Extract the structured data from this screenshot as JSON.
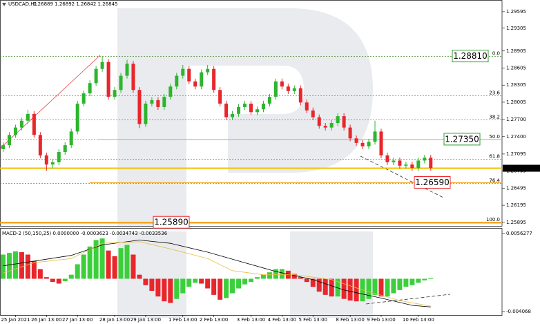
{
  "chart_data": [
    {
      "type": "candlestick",
      "title": "USDCAD,H1",
      "subtitle": "1.26889 1.26892 1.26842 1.26845",
      "up_color": "#2db52d",
      "down_color": "#e8262b",
      "open": [
        1.2718,
        1.2725,
        1.2743,
        1.2756,
        1.2768,
        1.278,
        1.2743,
        1.2707,
        1.2691,
        1.2695,
        1.2713,
        1.2725,
        1.2749,
        1.2798,
        1.2816,
        1.2834,
        1.2859,
        1.2871,
        1.281,
        1.2822,
        1.2847,
        1.2868,
        1.2822,
        1.2762,
        1.2798,
        1.2804,
        1.2792,
        1.281,
        1.2828,
        1.2847,
        1.2859,
        1.2837,
        1.2828,
        1.2853,
        1.2859,
        1.2822,
        1.2798,
        1.2774,
        1.278,
        1.2792,
        1.2798,
        1.2783,
        1.2788,
        1.2798,
        1.281,
        1.2837,
        1.2828,
        1.282,
        1.2825,
        1.28,
        1.2786,
        1.2774,
        1.2759,
        1.2756,
        1.2764,
        1.2776,
        1.2756,
        1.2737,
        1.2729,
        1.2723,
        1.2731,
        1.2749,
        1.2707,
        1.2695,
        1.2698,
        1.2689,
        1.2691,
        1.2685,
        1.2698,
        1.2703
      ],
      "high": [
        1.273,
        1.2748,
        1.2761,
        1.2773,
        1.2787,
        1.2785,
        1.2748,
        1.2712,
        1.27,
        1.2718,
        1.273,
        1.2754,
        1.2803,
        1.2821,
        1.2839,
        1.2864,
        1.2881,
        1.2876,
        1.2827,
        1.2852,
        1.2875,
        1.2873,
        1.2827,
        1.2803,
        1.2809,
        1.2809,
        1.2815,
        1.2833,
        1.2852,
        1.2866,
        1.2864,
        1.2842,
        1.2858,
        1.2866,
        1.2864,
        1.2827,
        1.2803,
        1.2785,
        1.2797,
        1.2803,
        1.2803,
        1.2793,
        1.2803,
        1.2815,
        1.2842,
        1.2842,
        1.2833,
        1.283,
        1.283,
        1.2805,
        1.2791,
        1.2779,
        1.2764,
        1.2769,
        1.2781,
        1.2781,
        1.2761,
        1.2742,
        1.2734,
        1.2736,
        1.2768,
        1.2754,
        1.2712,
        1.2703,
        1.2703,
        1.2696,
        1.2696,
        1.2703,
        1.2708,
        1.2708
      ],
      "low": [
        1.2713,
        1.272,
        1.2738,
        1.2751,
        1.2763,
        1.2738,
        1.2702,
        1.268,
        1.2684,
        1.269,
        1.2708,
        1.272,
        1.2744,
        1.2793,
        1.2811,
        1.2829,
        1.2854,
        1.2805,
        1.2805,
        1.2817,
        1.2842,
        1.2817,
        1.2755,
        1.2757,
        1.2793,
        1.2787,
        1.2787,
        1.2805,
        1.2823,
        1.2842,
        1.2832,
        1.2823,
        1.2823,
        1.2848,
        1.2817,
        1.2793,
        1.2769,
        1.2769,
        1.2775,
        1.2787,
        1.2778,
        1.2778,
        1.2783,
        1.2793,
        1.2805,
        1.2823,
        1.2815,
        1.2815,
        1.2795,
        1.2781,
        1.2769,
        1.2754,
        1.2751,
        1.2751,
        1.2759,
        1.2751,
        1.2732,
        1.2724,
        1.2718,
        1.2718,
        1.2726,
        1.2702,
        1.269,
        1.269,
        1.2684,
        1.2684,
        1.268,
        1.268,
        1.2693,
        1.268
      ],
      "close": [
        1.2725,
        1.2743,
        1.2756,
        1.2768,
        1.278,
        1.2743,
        1.2707,
        1.2691,
        1.2695,
        1.2713,
        1.2725,
        1.2749,
        1.2798,
        1.2816,
        1.2834,
        1.2859,
        1.2871,
        1.281,
        1.2822,
        1.2847,
        1.2868,
        1.2822,
        1.2762,
        1.2798,
        1.2804,
        1.2792,
        1.281,
        1.2828,
        1.2847,
        1.2859,
        1.2837,
        1.2828,
        1.2853,
        1.2859,
        1.2822,
        1.2798,
        1.2774,
        1.278,
        1.2792,
        1.2798,
        1.2783,
        1.2788,
        1.2798,
        1.281,
        1.2837,
        1.2828,
        1.282,
        1.2825,
        1.28,
        1.2786,
        1.2774,
        1.2759,
        1.2756,
        1.2764,
        1.2776,
        1.2756,
        1.2737,
        1.2729,
        1.2723,
        1.2731,
        1.2749,
        1.2707,
        1.2695,
        1.2698,
        1.2689,
        1.2691,
        1.2685,
        1.2698,
        1.2703,
        1.2685
      ],
      "xlim": [
        -0.5,
        80.5
      ],
      "xticks": [
        {
          "value": 2,
          "label": "25 Jan 2021"
        },
        {
          "value": 7,
          "label": "26 Jan 13:00"
        },
        {
          "value": 12,
          "label": "27 Jan 13:00"
        },
        {
          "value": 18,
          "label": "28 Jan 13:00"
        },
        {
          "value": 23,
          "label": "29 Jan 13:00"
        },
        {
          "value": 29,
          "label": "1 Feb 13:00"
        },
        {
          "value": 34,
          "label": "2 Feb 13:00"
        },
        {
          "value": 40,
          "label": "3 Feb 13:00"
        },
        {
          "value": 45,
          "label": "4 Feb 13:00"
        },
        {
          "value": 50,
          "label": "5 Feb 13:00"
        },
        {
          "value": 56,
          "label": "8 Feb 13:00"
        },
        {
          "value": 61,
          "label": "9 Feb 13:00"
        },
        {
          "value": 67,
          "label": "10 Feb 13:00"
        }
      ],
      "ylim": [
        1.2582,
        1.298
      ],
      "yticks": [
        1.29595,
        1.29305,
        1.28905,
        1.28605,
        1.28305,
        1.28005,
        {
          "value": 1.277,
          "label": "1.27700"
        },
        {
          "value": 1.274,
          "label": "1.27400"
        },
        1.27095,
        1.26795,
        1.26495,
        1.26195,
        1.25895
      ],
      "fib_color": "#e8262b",
      "fib_levels": [
        {
          "label": "0.0",
          "price": 1.2881
        },
        {
          "label": "23.6",
          "price": 1.28121
        },
        {
          "label": "38.2",
          "price": 1.27695
        },
        {
          "label": "50.0",
          "price": 1.2735
        },
        {
          "label": "61.8",
          "price": 1.27005
        },
        {
          "label": "76.4",
          "price": 1.26579
        },
        {
          "label": "100.0",
          "price": 1.2589
        }
      ],
      "price_lines": [
        {
          "value": 1.2881,
          "label": "1.28810",
          "color": "#2e9e2e",
          "line_color": "#2e9e2e"
        },
        {
          "value": 1.2735,
          "label": "1.27350",
          "color": "#2e9e2e",
          "line_color": "#f5a623"
        },
        {
          "value": 1.2659,
          "label": "1.26590",
          "color": "#e8262b",
          "line_color": "#f5a623"
        },
        {
          "value": 1.2589,
          "label": "1.25890",
          "color": "#e8262b",
          "line_color": "#f5a623"
        }
      ],
      "current_price": {
        "value": 1.26845,
        "label": "1.26845",
        "color": "#f2c200"
      }
    },
    {
      "type": "macd",
      "title": "MACD-2 (50,150,25) 0.0000000 -0.0003623 -0.0034743 -0.0033536",
      "up_color": "#3ccf3c",
      "down_color": "#e8262b",
      "values": [
        0.003,
        0.0032,
        0.0034,
        0.0033,
        0.003,
        0.0022,
        0.0012,
        0.0002,
        -0.0004,
        -0.0006,
        -0.0003,
        0.0005,
        0.0018,
        0.003,
        0.004,
        0.0048,
        0.005,
        0.0035,
        0.0028,
        0.0038,
        0.0042,
        0.003,
        0.0005,
        -0.0008,
        -0.0015,
        -0.0022,
        -0.0028,
        -0.003,
        -0.0025,
        -0.0018,
        -0.001,
        -0.0005,
        -0.0006,
        -0.0012,
        -0.002,
        -0.0026,
        -0.0024,
        -0.0018,
        -0.0012,
        -0.0007,
        -0.0004,
        0.0002,
        0.0005,
        0.0008,
        0.0012,
        0.0012,
        0.001,
        0.0006,
        0.0002,
        -0.0004,
        -0.001,
        -0.0016,
        -0.002,
        -0.0022,
        -0.0022,
        -0.0025,
        -0.0027,
        -0.0028,
        -0.0028,
        -0.0025,
        -0.002,
        -0.0022,
        -0.0022,
        -0.0018,
        -0.0014,
        -0.001,
        -0.0008,
        -0.0005,
        -0.0002,
        0.0001
      ],
      "lines": [
        {
          "color": "#000000",
          "x": [
            0,
            11,
            16,
            22,
            27,
            33,
            38,
            44,
            50,
            55,
            61,
            66,
            69
          ],
          "values": [
            0.0016,
            0.0029,
            0.0042,
            0.0048,
            0.0044,
            0.0033,
            0.0022,
            0.0009,
            -0.0001,
            -0.0014,
            -0.0024,
            -0.0033,
            -0.0035
          ]
        },
        {
          "color": "#e8c040",
          "x": [
            0,
            5,
            11,
            16,
            22,
            27,
            33,
            37,
            42,
            47,
            53,
            58,
            64,
            69
          ],
          "values": [
            0.0007,
            0.002,
            0.0025,
            0.0044,
            0.0046,
            0.0037,
            0.0025,
            0.001,
            0.0005,
            0.0005,
            -0.0001,
            -0.0014,
            -0.0027,
            -0.0034
          ]
        }
      ],
      "ylim": [
        -0.0045,
        0.0063
      ],
      "yticks": [
        0.0056277,
        -0.004068
      ]
    }
  ]
}
